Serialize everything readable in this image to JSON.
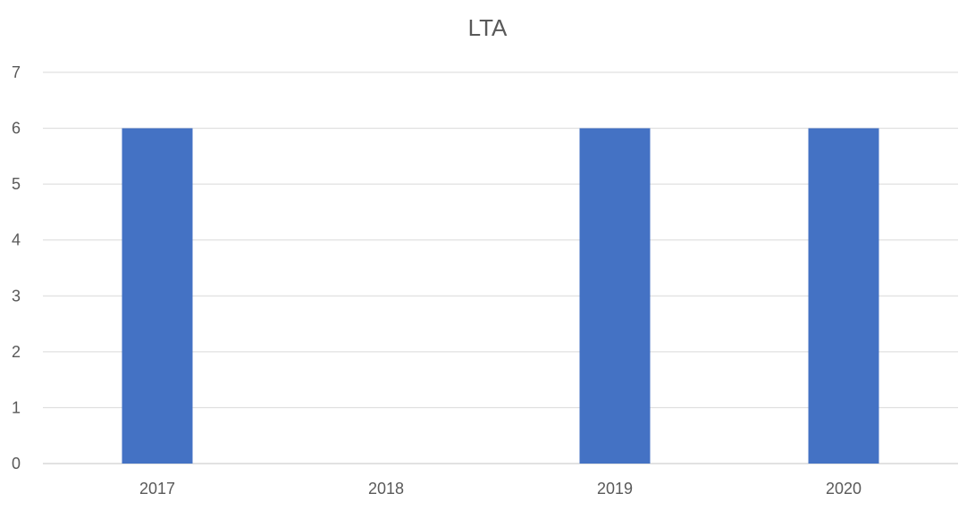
{
  "chart_data": {
    "type": "bar",
    "title": "LTA",
    "categories": [
      "2017",
      "2018",
      "2019",
      "2020"
    ],
    "values": [
      6,
      0,
      6,
      6
    ],
    "ylim": [
      0,
      7
    ],
    "yticks": [
      0,
      1,
      2,
      3,
      4,
      5,
      6,
      7
    ],
    "xlabel": "",
    "ylabel": "",
    "grid": true,
    "bar_color": "#4472C4",
    "grid_color": "#D9D9D9",
    "text_color": "#595959"
  }
}
